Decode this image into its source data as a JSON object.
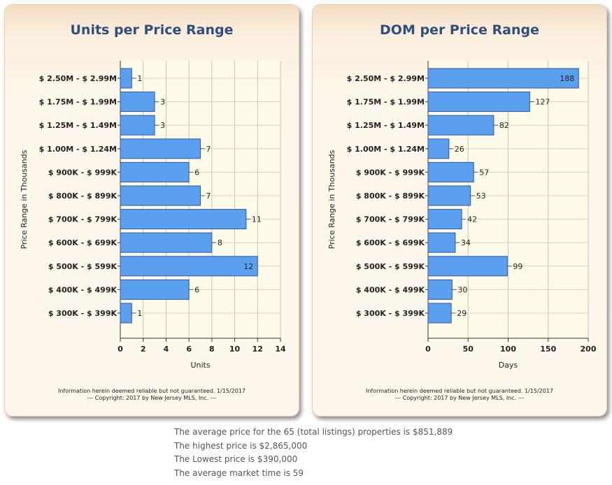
{
  "chart_data": [
    {
      "type": "bar",
      "orientation": "horizontal",
      "title": "Units per Price Range",
      "xlabel": "Units",
      "ylabel": "Price Range in Thousands",
      "categories": [
        "$ 2.50M - $ 2.99M",
        "$ 1.75M - $ 1.99M",
        "$ 1.25M - $ 1.49M",
        "$ 1.00M - $ 1.24M",
        "$ 900K - $ 999K",
        "$ 800K - $ 899K",
        "$ 700K - $ 799K",
        "$ 600K - $ 699K",
        "$ 500K - $ 599K",
        "$ 400K - $ 499K",
        "$ 300K - $ 399K"
      ],
      "values": [
        1,
        3,
        3,
        7,
        6,
        7,
        11,
        8,
        12,
        6,
        1
      ],
      "xlim": [
        0,
        14
      ],
      "xticks": [
        0,
        2,
        4,
        6,
        8,
        10,
        12,
        14
      ],
      "grid": true,
      "bar_color": "#5aa0ef",
      "note": "Information herein deemed reliable but not guaranteed. 1/15/2017",
      "copyright": "--- Copyright: 2017 by New Jersey MLS, Inc. ---"
    },
    {
      "type": "bar",
      "orientation": "horizontal",
      "title": "DOM per Price Range",
      "xlabel": "Days",
      "ylabel": "Price Range in Thousands",
      "categories": [
        "$ 2.50M - $ 2.99M",
        "$ 1.75M - $ 1.99M",
        "$ 1.25M - $ 1.49M",
        "$ 1.00M - $ 1.24M",
        "$ 900K - $ 999K",
        "$ 800K - $ 899K",
        "$ 700K - $ 799K",
        "$ 600K - $ 699K",
        "$ 500K - $ 599K",
        "$ 400K - $ 499K",
        "$ 300K - $ 399K"
      ],
      "values": [
        188,
        127,
        82,
        26,
        57,
        53,
        42,
        34,
        99,
        30,
        29
      ],
      "xlim": [
        0,
        200
      ],
      "xticks": [
        0,
        50,
        100,
        150,
        200
      ],
      "grid": true,
      "bar_color": "#5aa0ef",
      "note": "Information herein deemed reliable but not guaranteed. 1/15/2017",
      "copyright": "--- Copyright: 2017 by New Jersey MLS, Inc. ---"
    }
  ],
  "summary": {
    "line1": "The average price for the 65 (total listings) properties is $851,889",
    "line2": "The highest price is  $2,865,000",
    "line3": "The Lowest price is  $390,000",
    "line4": "The average market time is 59"
  }
}
